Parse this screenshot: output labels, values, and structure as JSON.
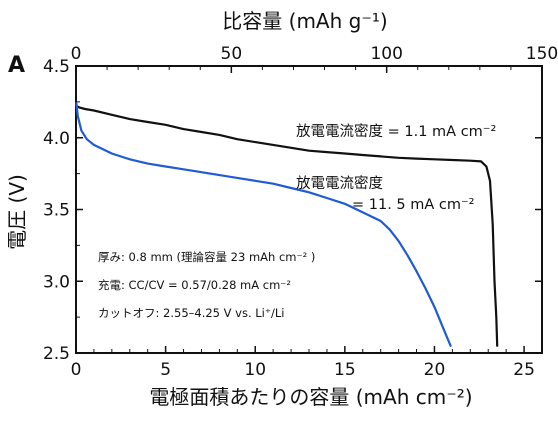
{
  "chart_data": {
    "type": "line",
    "panel_label": "A",
    "xlabel": "電極面積あたりの容量 (mAh cm⁻²)",
    "ylabel": "電圧 (V)",
    "top_xlabel": "比容量 (mAh g⁻¹)",
    "xlim": [
      0,
      26
    ],
    "ylim": [
      2.5,
      4.5
    ],
    "top_xlim": [
      0,
      150
    ],
    "x_ticks": [
      0,
      5,
      10,
      15,
      20,
      25
    ],
    "x_tick_labels": [
      "0",
      "5",
      "10",
      "15",
      "20",
      "25"
    ],
    "y_ticks": [
      2.5,
      3.0,
      3.5,
      4.0,
      4.5
    ],
    "y_tick_labels": [
      "2.5",
      "3.0",
      "3.5",
      "4.0",
      "4.5"
    ],
    "top_ticks": [
      0,
      50,
      100,
      150
    ],
    "top_tick_labels": [
      "0",
      "50",
      "100",
      "150"
    ],
    "grid": false,
    "series": [
      {
        "color": "#111111",
        "x": [
          0.05,
          0.2,
          0.5,
          1,
          2,
          3,
          4,
          5,
          6,
          7,
          8,
          9,
          10,
          11,
          12,
          13,
          14,
          15,
          16,
          17,
          18,
          19,
          20,
          21,
          22,
          22.6,
          22.9,
          23.1,
          23.25,
          23.35,
          23.45,
          23.5
        ],
        "y": [
          4.22,
          4.21,
          4.2,
          4.19,
          4.16,
          4.13,
          4.11,
          4.09,
          4.06,
          4.04,
          4.02,
          3.99,
          3.97,
          3.95,
          3.93,
          3.91,
          3.9,
          3.89,
          3.88,
          3.87,
          3.86,
          3.855,
          3.85,
          3.845,
          3.84,
          3.835,
          3.8,
          3.7,
          3.4,
          3.0,
          2.75,
          2.55
        ]
      },
      {
        "color": "#1f5bd6",
        "x": [
          0.02,
          0.1,
          0.3,
          0.6,
          1,
          2,
          3,
          4,
          5,
          6,
          7,
          8,
          9,
          10,
          11,
          12,
          13,
          14,
          15,
          16,
          17,
          17.5,
          18,
          18.5,
          19,
          19.5,
          20,
          20.5,
          20.9
        ],
        "y": [
          4.24,
          4.15,
          4.05,
          3.99,
          3.95,
          3.89,
          3.85,
          3.82,
          3.8,
          3.78,
          3.76,
          3.74,
          3.72,
          3.7,
          3.68,
          3.65,
          3.62,
          3.58,
          3.54,
          3.48,
          3.42,
          3.36,
          3.28,
          3.18,
          3.07,
          2.95,
          2.82,
          2.67,
          2.55
        ]
      }
    ],
    "annotations": [
      {
        "id": "annot-1",
        "text": "放電電流密度 = 1.1 mA cm⁻²"
      },
      {
        "id": "annot-2a",
        "text": "放電電流密度"
      },
      {
        "id": "annot-2b",
        "text": "= 11. 5 mA cm⁻²"
      },
      {
        "id": "note-1",
        "text": "厚み: 0.8 mm (理論容量 23 mAh cm⁻² )"
      },
      {
        "id": "note-2",
        "text": "充電: CC/CV = 0.57/0.28 mA cm⁻²"
      },
      {
        "id": "note-3",
        "text": "カットオフ: 2.55–4.25 V vs. Li⁺/Li"
      }
    ]
  }
}
